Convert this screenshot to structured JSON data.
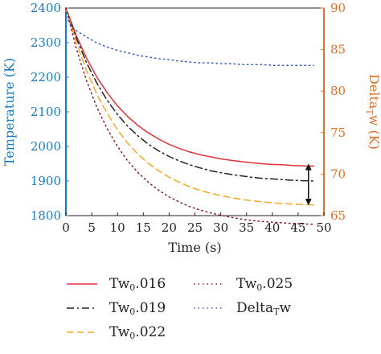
{
  "chart_data": {
    "type": "line",
    "xlabel": "Time (s)",
    "ylabel": "Temperature (K)",
    "y2label_parts": {
      "pre": "Delta",
      "sub": "T",
      "post": "w (K)"
    },
    "xlim": [
      0,
      50
    ],
    "ylim": [
      1800,
      2400
    ],
    "y2lim": [
      65,
      90
    ],
    "xticks": [
      "0",
      "5",
      "10",
      "15",
      "20",
      "25",
      "30",
      "35",
      "40",
      "45",
      "50"
    ],
    "yticks": [
      "1800",
      "1900",
      "2000",
      "2100",
      "2200",
      "2300",
      "2400"
    ],
    "y2ticks": [
      "65",
      "70",
      "75",
      "80",
      "85",
      "90"
    ],
    "colors": {
      "left_axis": "#1a7ac7",
      "right_axis": "#e0702a"
    },
    "series": [
      {
        "name_parts": {
          "pre": "Tw",
          "sub": "0",
          "post": ".016"
        },
        "color": "#e3313b",
        "dash": "solid",
        "axis": "left",
        "x": [
          0,
          2,
          4,
          6,
          8,
          10,
          12,
          14,
          16,
          18,
          20,
          22,
          24,
          26,
          28,
          30,
          32,
          34,
          36,
          38,
          40,
          42,
          44,
          46,
          48
        ],
        "y": [
          2400,
          2321,
          2255,
          2200,
          2155,
          2117,
          2086,
          2060,
          2039,
          2021,
          2006,
          1994,
          1984,
          1976,
          1970,
          1964,
          1960,
          1956,
          1953,
          1950,
          1948,
          1947,
          1945,
          1944,
          1943
        ]
      },
      {
        "name_parts": {
          "pre": "Tw",
          "sub": "0",
          "post": ".019"
        },
        "color": "#222222",
        "dash": "dashdot",
        "axis": "left",
        "x": [
          0,
          2,
          4,
          6,
          8,
          10,
          12,
          14,
          16,
          18,
          20,
          22,
          24,
          26,
          28,
          30,
          32,
          34,
          36,
          38,
          40,
          42,
          44,
          46,
          48
        ],
        "y": [
          2400,
          2314,
          2242,
          2183,
          2133,
          2092,
          2058,
          2030,
          2006,
          1987,
          1971,
          1958,
          1947,
          1938,
          1930,
          1924,
          1919,
          1915,
          1911,
          1908,
          1906,
          1904,
          1902,
          1901,
          1900
        ]
      },
      {
        "name_parts": {
          "pre": "Tw",
          "sub": "0",
          "post": ".022"
        },
        "color": "#f5a623",
        "dash": "dashed",
        "axis": "left",
        "x": [
          0,
          2,
          4,
          6,
          8,
          10,
          12,
          14,
          16,
          18,
          20,
          22,
          24,
          26,
          28,
          30,
          32,
          34,
          36,
          38,
          40,
          42,
          44,
          46,
          48
        ],
        "y": [
          2400,
          2301,
          2219,
          2151,
          2095,
          2048,
          2009,
          1977,
          1951,
          1929,
          1911,
          1896,
          1883,
          1873,
          1865,
          1858,
          1852,
          1847,
          1843,
          1840,
          1837,
          1835,
          1833,
          1832,
          1831
        ]
      },
      {
        "name_parts": {
          "pre": "Tw",
          "sub": "0",
          "post": ".025"
        },
        "color": "#8b1a2b",
        "dash": "dotted",
        "axis": "left",
        "x": [
          0,
          2,
          4,
          6,
          8,
          10,
          12,
          14,
          16,
          18,
          20,
          22,
          24,
          26,
          28,
          30,
          32,
          34,
          36,
          38,
          40,
          42,
          44,
          46,
          48
        ],
        "y": [
          2400,
          2284,
          2190,
          2113,
          2051,
          2000,
          1958,
          1924,
          1896,
          1873,
          1854,
          1839,
          1826,
          1816,
          1808,
          1801,
          1795,
          1790,
          1786,
          1783,
          1781,
          1779,
          1777,
          1776,
          1775
        ]
      },
      {
        "name_parts": {
          "pre": "Delta",
          "sub": "T",
          "post": "w"
        },
        "color": "#3b5fc0",
        "dash": "dotted",
        "axis": "right",
        "x": [
          0,
          1,
          2,
          4,
          6,
          8,
          10,
          12,
          14,
          16,
          18,
          20,
          22,
          24,
          26,
          28,
          30,
          32,
          34,
          36,
          38,
          40,
          42,
          44,
          46,
          48
        ],
        "y": [
          89,
          87.9,
          87.3,
          86.5,
          85.8,
          85.3,
          84.9,
          84.6,
          84.3,
          84.1,
          83.9,
          83.8,
          83.6,
          83.5,
          83.4,
          83.4,
          83.3,
          83.3,
          83.2,
          83.2,
          83.2,
          83.1,
          83.1,
          83.1,
          83.1,
          83.1
        ]
      }
    ],
    "annotation": {
      "type": "double-arrow",
      "x": 47,
      "y_from": 1950,
      "y_to": 1830
    }
  }
}
